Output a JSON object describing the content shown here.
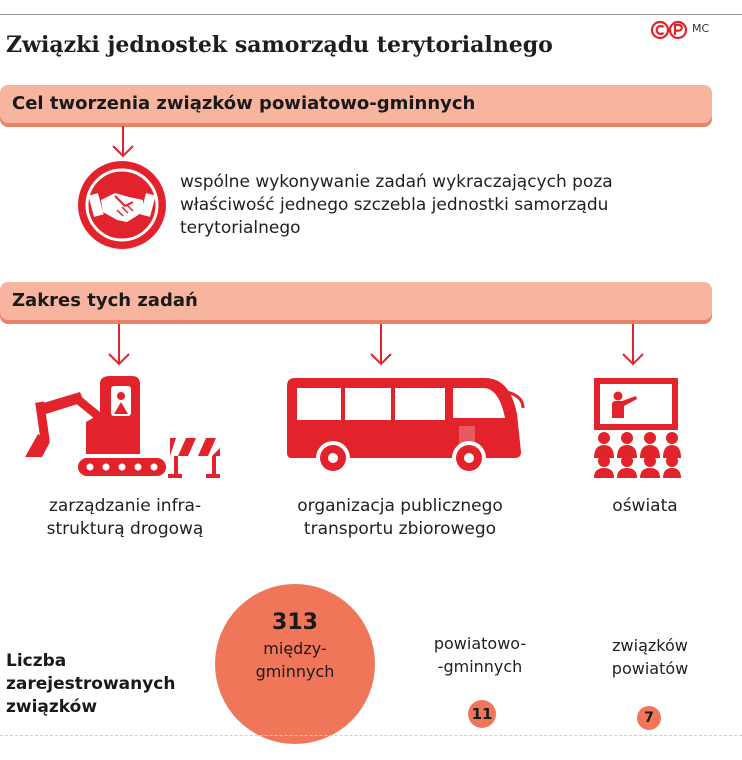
{
  "title": "Związki jednostek samorządu terytorialnego",
  "logo_text": "©P",
  "author": "MC",
  "colors": {
    "red": "#e2232b",
    "bar": "#f7b49e",
    "bubble": "#f0765a"
  },
  "section1": {
    "heading": "Cel tworzenia związków powiatowo-gminnych",
    "icon": "handshake-icon",
    "text": "wspólne wykonywanie zadań wykraczających poza właściwość jednego szczebla jednostki samorządu terytorialnego"
  },
  "section2": {
    "heading": "Zakres tych zadań",
    "items": [
      {
        "icon": "excavator-icon",
        "line1": "zarządzanie infra-",
        "line2": "strukturą drogową"
      },
      {
        "icon": "bus-icon",
        "line1": "organizacja publicznego",
        "line2": "transportu zbiorowego"
      },
      {
        "icon": "classroom-icon",
        "line1": "oświata",
        "line2": ""
      }
    ]
  },
  "counts": {
    "label_lines": [
      "Liczba",
      "zarejestrowanych",
      "związków"
    ],
    "intermunicipal": {
      "value": "313",
      "line1": "między-",
      "line2": "gminnych"
    },
    "county_municipal": {
      "value": "11",
      "line1": "powiatowo-",
      "line2": "-gminnych"
    },
    "county": {
      "value": "7",
      "line1": "związków",
      "line2": "powiatów"
    }
  }
}
